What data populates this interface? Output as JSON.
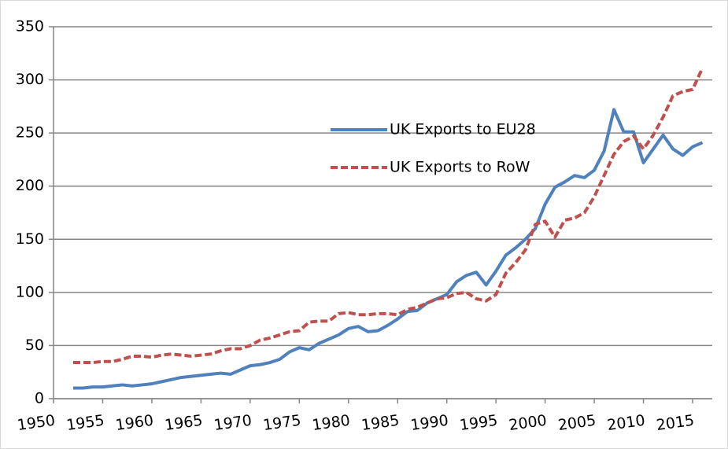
{
  "chart_data": {
    "type": "line",
    "x": [
      1952,
      1953,
      1954,
      1955,
      1956,
      1957,
      1958,
      1959,
      1960,
      1961,
      1962,
      1963,
      1964,
      1965,
      1966,
      1967,
      1968,
      1969,
      1970,
      1971,
      1972,
      1973,
      1974,
      1975,
      1976,
      1977,
      1978,
      1979,
      1980,
      1981,
      1982,
      1983,
      1984,
      1985,
      1986,
      1987,
      1988,
      1989,
      1990,
      1991,
      1992,
      1993,
      1994,
      1995,
      1996,
      1997,
      1998,
      1999,
      2000,
      2001,
      2002,
      2003,
      2004,
      2005,
      2006,
      2007,
      2008,
      2009,
      2010,
      2011,
      2012,
      2013,
      2014,
      2015,
      2016
    ],
    "series": [
      {
        "name": "UK Exports to EU28",
        "color": "#4f81bd",
        "dash": false,
        "values": [
          10,
          10,
          11,
          11,
          12,
          13,
          12,
          13,
          14,
          16,
          18,
          20,
          21,
          22,
          23,
          24,
          23,
          27,
          31,
          32,
          34,
          37,
          44,
          48,
          46,
          52,
          56,
          60,
          66,
          68,
          63,
          64,
          69,
          75,
          82,
          83,
          90,
          94,
          98,
          110,
          116,
          119,
          107,
          120,
          135,
          142,
          150,
          160,
          183,
          199,
          204,
          210,
          208,
          215,
          233,
          272,
          251,
          251,
          222,
          235,
          248,
          235,
          229,
          237,
          241
        ]
      },
      {
        "name": "UK Exports to RoW",
        "color": "#c0504d",
        "dash": true,
        "values": [
          34,
          34,
          34,
          35,
          35,
          37,
          40,
          40,
          39,
          41,
          42,
          41,
          40,
          41,
          42,
          45,
          47,
          47,
          50,
          55,
          57,
          60,
          63,
          64,
          72,
          73,
          73,
          80,
          81,
          79,
          79,
          80,
          80,
          79,
          84,
          86,
          90,
          94,
          95,
          99,
          100,
          94,
          92,
          98,
          118,
          128,
          140,
          164,
          167,
          152,
          168,
          170,
          175,
          190,
          210,
          230,
          242,
          247,
          235,
          248,
          265,
          285,
          289,
          291,
          311
        ]
      }
    ],
    "xlim": [
      1950,
      2017
    ],
    "xticks": [
      1950,
      1955,
      1960,
      1965,
      1970,
      1975,
      1980,
      1985,
      1990,
      1995,
      2000,
      2005,
      2010,
      2015
    ],
    "ylim": [
      0,
      350
    ],
    "yticks": [
      0,
      50,
      100,
      150,
      200,
      250,
      300,
      350
    ],
    "grid": true
  }
}
